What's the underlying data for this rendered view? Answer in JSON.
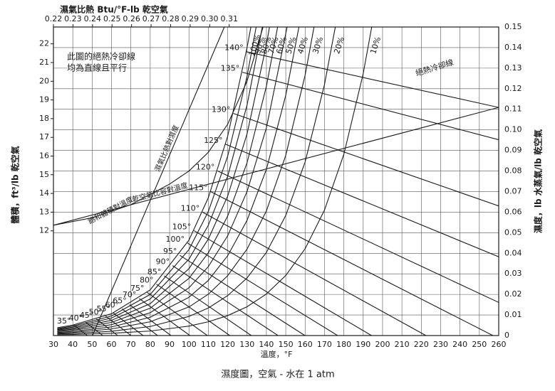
{
  "chart_data": {
    "type": "line",
    "title": "濕度圖，空氣 - 水在 1 atm",
    "xlabel": "溫度，°F",
    "ylabel": "體積，ft³/lb 乾空氣",
    "y2label": "濕度，lb 水蒸氣/lb 乾空氣",
    "x2label": "濕氣比熱 Btu/°F-lb 乾空氣",
    "notes": [
      "此圖的絕熱冷卻線",
      "均為直線且平行",
      "絕熱冷卻線"
    ],
    "color": "#1a1a1a",
    "grid": true,
    "xlim": [
      30,
      260
    ],
    "xticks": [
      30,
      40,
      50,
      60,
      70,
      80,
      90,
      100,
      110,
      120,
      130,
      140,
      150,
      160,
      170,
      180,
      190,
      200,
      210,
      220,
      230,
      240,
      250,
      260
    ],
    "x2lim": [
      0.22,
      0.448
    ],
    "x2ticks": [
      0.22,
      0.23,
      0.24,
      0.25,
      0.26,
      0.27,
      0.28,
      0.29,
      {
        "value": 0.3,
        "label": "0.30"
      },
      0.31
    ],
    "ylim": [
      6.4,
      22.9
    ],
    "yticks": [
      12,
      13,
      14,
      15,
      16,
      17,
      18,
      19,
      20,
      21,
      22
    ],
    "y2lim": [
      0,
      0.15
    ],
    "y2ticks": [
      0,
      0.01,
      0.02,
      0.03,
      0.04,
      0.05,
      0.06,
      0.07,
      0.08,
      0.09,
      {
        "value": 0.1,
        "label": "0.10"
      },
      0.11,
      0.12,
      0.13,
      0.14,
      0.15
    ],
    "series": [
      {
        "name": "100%",
        "axis": "y2",
        "x": [
          32,
          40,
          60,
          80,
          100,
          110,
          120,
          130,
          132
        ],
        "values": [
          0.0038,
          0.0051,
          0.0106,
          0.0222,
          0.0464,
          0.067,
          0.0969,
          0.14,
          0.15
        ]
      },
      {
        "name": "90%",
        "axis": "y2",
        "x": [
          32,
          40,
          60,
          80,
          100,
          110,
          120,
          130,
          134.7
        ],
        "values": [
          0.0034,
          0.0046,
          0.0095,
          0.02,
          0.0418,
          0.0603,
          0.0872,
          0.126,
          0.15
        ]
      },
      {
        "name": "80%",
        "axis": "y2",
        "x": [
          32,
          40,
          60,
          80,
          100,
          110,
          120,
          130,
          137.9
        ],
        "values": [
          0.003,
          0.0041,
          0.0085,
          0.0178,
          0.0371,
          0.0536,
          0.0775,
          0.112,
          0.15
        ]
      },
      {
        "name": "70%",
        "axis": "y2",
        "x": [
          32,
          40,
          60,
          80,
          100,
          110,
          120,
          130,
          140,
          141.6
        ],
        "values": [
          0.0027,
          0.0036,
          0.0074,
          0.0155,
          0.0325,
          0.0469,
          0.0678,
          0.098,
          0.1414,
          0.15
        ]
      },
      {
        "name": "60%",
        "axis": "y2",
        "x": [
          32,
          40,
          60,
          80,
          100,
          110,
          120,
          130,
          140,
          145.8
        ],
        "values": [
          0.0023,
          0.0031,
          0.0064,
          0.0133,
          0.0278,
          0.0402,
          0.0581,
          0.084,
          0.1212,
          0.15
        ]
      },
      {
        "name": "50%",
        "axis": "y2",
        "x": [
          32,
          40,
          60,
          80,
          100,
          110,
          120,
          130,
          140,
          150.7
        ],
        "values": [
          0.0019,
          0.0026,
          0.0053,
          0.0111,
          0.0232,
          0.0335,
          0.0485,
          0.07,
          0.101,
          0.15
        ]
      },
      {
        "name": "40%",
        "axis": "y2",
        "x": [
          32,
          40,
          60,
          80,
          100,
          110,
          120,
          130,
          140,
          150,
          156.8
        ],
        "values": [
          0.0015,
          0.002,
          0.0042,
          0.0089,
          0.0186,
          0.0268,
          0.0388,
          0.056,
          0.0808,
          0.1168,
          0.15
        ]
      },
      {
        "name": "30%",
        "axis": "y2",
        "x": [
          32,
          40,
          60,
          80,
          100,
          110,
          120,
          130,
          140,
          150,
          160,
          164.6
        ],
        "values": [
          0.0011,
          0.0015,
          0.0032,
          0.0067,
          0.0139,
          0.0201,
          0.0291,
          0.042,
          0.0606,
          0.0876,
          0.1266,
          0.15
        ]
      },
      {
        "name": "20%",
        "axis": "y2",
        "x": [
          32,
          40,
          60,
          80,
          100,
          110,
          120,
          130,
          140,
          150,
          160,
          170,
          175.6
        ],
        "values": [
          0.0008,
          0.001,
          0.0021,
          0.0044,
          0.0093,
          0.0134,
          0.0194,
          0.028,
          0.0404,
          0.0584,
          0.0844,
          0.122,
          0.15
        ]
      },
      {
        "name": "10%",
        "axis": "y2",
        "x": [
          32,
          40,
          60,
          80,
          100,
          110,
          120,
          130,
          140,
          150,
          160,
          170,
          180,
          190,
          194.4
        ],
        "values": [
          0.0004,
          0.0005,
          0.0011,
          0.0022,
          0.0046,
          0.0067,
          0.0097,
          0.014,
          0.0202,
          0.0292,
          0.0422,
          0.061,
          0.0881,
          0.1273,
          0.15
        ]
      }
    ],
    "adiabatic_lines": [
      {
        "name": "140°",
        "axis": "y2",
        "x": [
          129.6,
          260
        ],
        "values": [
          0.138,
          0.1109
        ]
      },
      {
        "name": "135°",
        "axis": "y2",
        "x": [
          127.6,
          260
        ],
        "values": [
          0.128,
          0.0952
        ]
      },
      {
        "name": "130°",
        "axis": "y2",
        "x": [
          122.9,
          260
        ],
        "values": [
          0.108,
          0.063
        ]
      },
      {
        "name": "125°",
        "axis": "y2",
        "x": [
          118.9,
          260
        ],
        "values": [
          0.093,
          0.0383
        ]
      },
      {
        "name": "120°",
        "axis": "y2",
        "x": [
          114.8,
          260
        ],
        "values": [
          0.08,
          0.0161
        ]
      },
      {
        "name": "115°",
        "axis": "y2",
        "x": [
          111.2,
          257
        ],
        "values": [
          0.07,
          0
        ]
      },
      {
        "name": "110°",
        "axis": "y2",
        "x": [
          107,
          222.4
        ],
        "values": [
          0.06,
          0
        ]
      },
      {
        "name": "105°",
        "axis": "y2",
        "x": [
          102.6,
          194.3
        ],
        "values": [
          0.051,
          0
        ]
      },
      {
        "name": "100°",
        "axis": "y2",
        "x": [
          99.2,
          176.8
        ],
        "values": [
          0.045,
          0
        ]
      },
      {
        "name": "95°",
        "axis": "y2",
        "x": [
          95.3,
          159.9
        ],
        "values": [
          0.039,
          0
        ]
      },
      {
        "name": "90°",
        "axis": "y2",
        "x": [
          91.5,
          146
        ],
        "values": [
          0.034,
          0
        ]
      },
      {
        "name": "85°",
        "axis": "y2",
        "x": [
          87.2,
          132.2
        ],
        "values": [
          0.029,
          0
        ]
      },
      {
        "name": "80°",
        "axis": "y2",
        "x": [
          83.2,
          121.1
        ],
        "values": [
          0.025,
          0
        ]
      },
      {
        "name": "75°",
        "axis": "y2",
        "x": [
          78.4,
          109.5
        ],
        "values": [
          0.021,
          0
        ]
      },
      {
        "name": "70°",
        "axis": "y2",
        "x": [
          74.3,
          100.5
        ],
        "values": [
          0.018,
          0
        ]
      },
      {
        "name": "65°",
        "axis": "y2",
        "x": [
          69.3,
          90.7
        ],
        "values": [
          0.015,
          0
        ]
      },
      {
        "name": "60°",
        "axis": "y2",
        "x": [
          65.4,
          83.8
        ],
        "values": [
          0.013,
          0
        ]
      },
      {
        "name": "55°",
        "axis": "y2",
        "x": [
          60.9,
          76.3
        ],
        "values": [
          0.011,
          0
        ]
      },
      {
        "name": "50°",
        "axis": "y2",
        "x": [
          56.9,
          70.1
        ],
        "values": [
          0.0095,
          0
        ]
      },
      {
        "name": "45°",
        "axis": "y2",
        "x": [
          52.2,
          63.2
        ],
        "values": [
          0.008,
          0
        ]
      },
      {
        "name": "40°",
        "axis": "y2",
        "x": [
          46.6,
          55.5
        ],
        "values": [
          0.0065,
          0
        ]
      },
      {
        "name": "35°",
        "axis": "y2",
        "x": [
          40.5,
          47.5
        ],
        "values": [
          0.0052,
          0
        ]
      }
    ],
    "volume_lines": [
      {
        "name": "飽和體積對溫度",
        "axis": "y",
        "x": [
          30,
          50,
          70,
          90,
          100,
          110,
          120,
          130,
          140
        ],
        "values": [
          12.3,
          12.7,
          13.4,
          14.5,
          15.2,
          16.2,
          17.7,
          20,
          23.5
        ]
      },
      {
        "name": "乾空氣比容對溫度",
        "axis": "y",
        "x": [
          30,
          260
        ],
        "values": [
          12.3,
          18.6
        ]
      }
    ],
    "humid_heat_line": {
      "name": "濕氣比熱對濕度",
      "axis": "y2",
      "xaxis": "x2",
      "x": [
        0.24,
        0.3075
      ],
      "values": [
        0,
        0.15
      ]
    }
  }
}
